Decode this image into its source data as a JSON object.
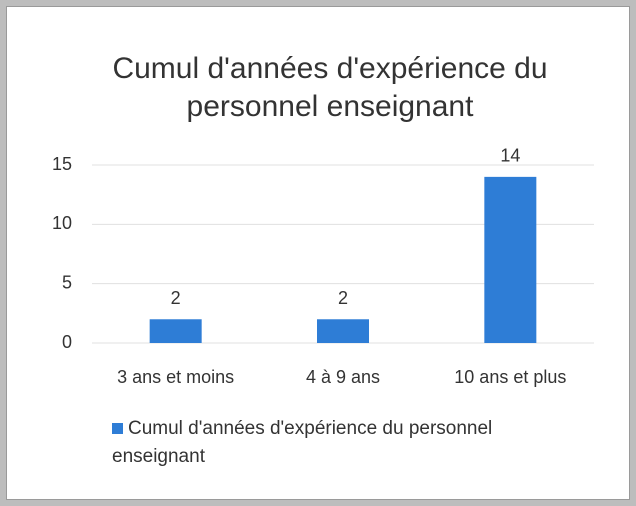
{
  "chart_data": {
    "type": "bar",
    "title": "Cumul d'années d'expérience du personnel enseignant",
    "categories": [
      "3 ans et moins",
      "4 à 9 ans",
      "10 ans et plus"
    ],
    "series": [
      {
        "name": "Cumul d'années d'expérience du personnel enseignant",
        "color": "#2e7dd6",
        "values": [
          2,
          2,
          14
        ]
      }
    ],
    "ylim": [
      0,
      15
    ],
    "yticks": [
      0,
      5,
      10,
      15
    ],
    "grid": true,
    "legend": "bottom"
  }
}
